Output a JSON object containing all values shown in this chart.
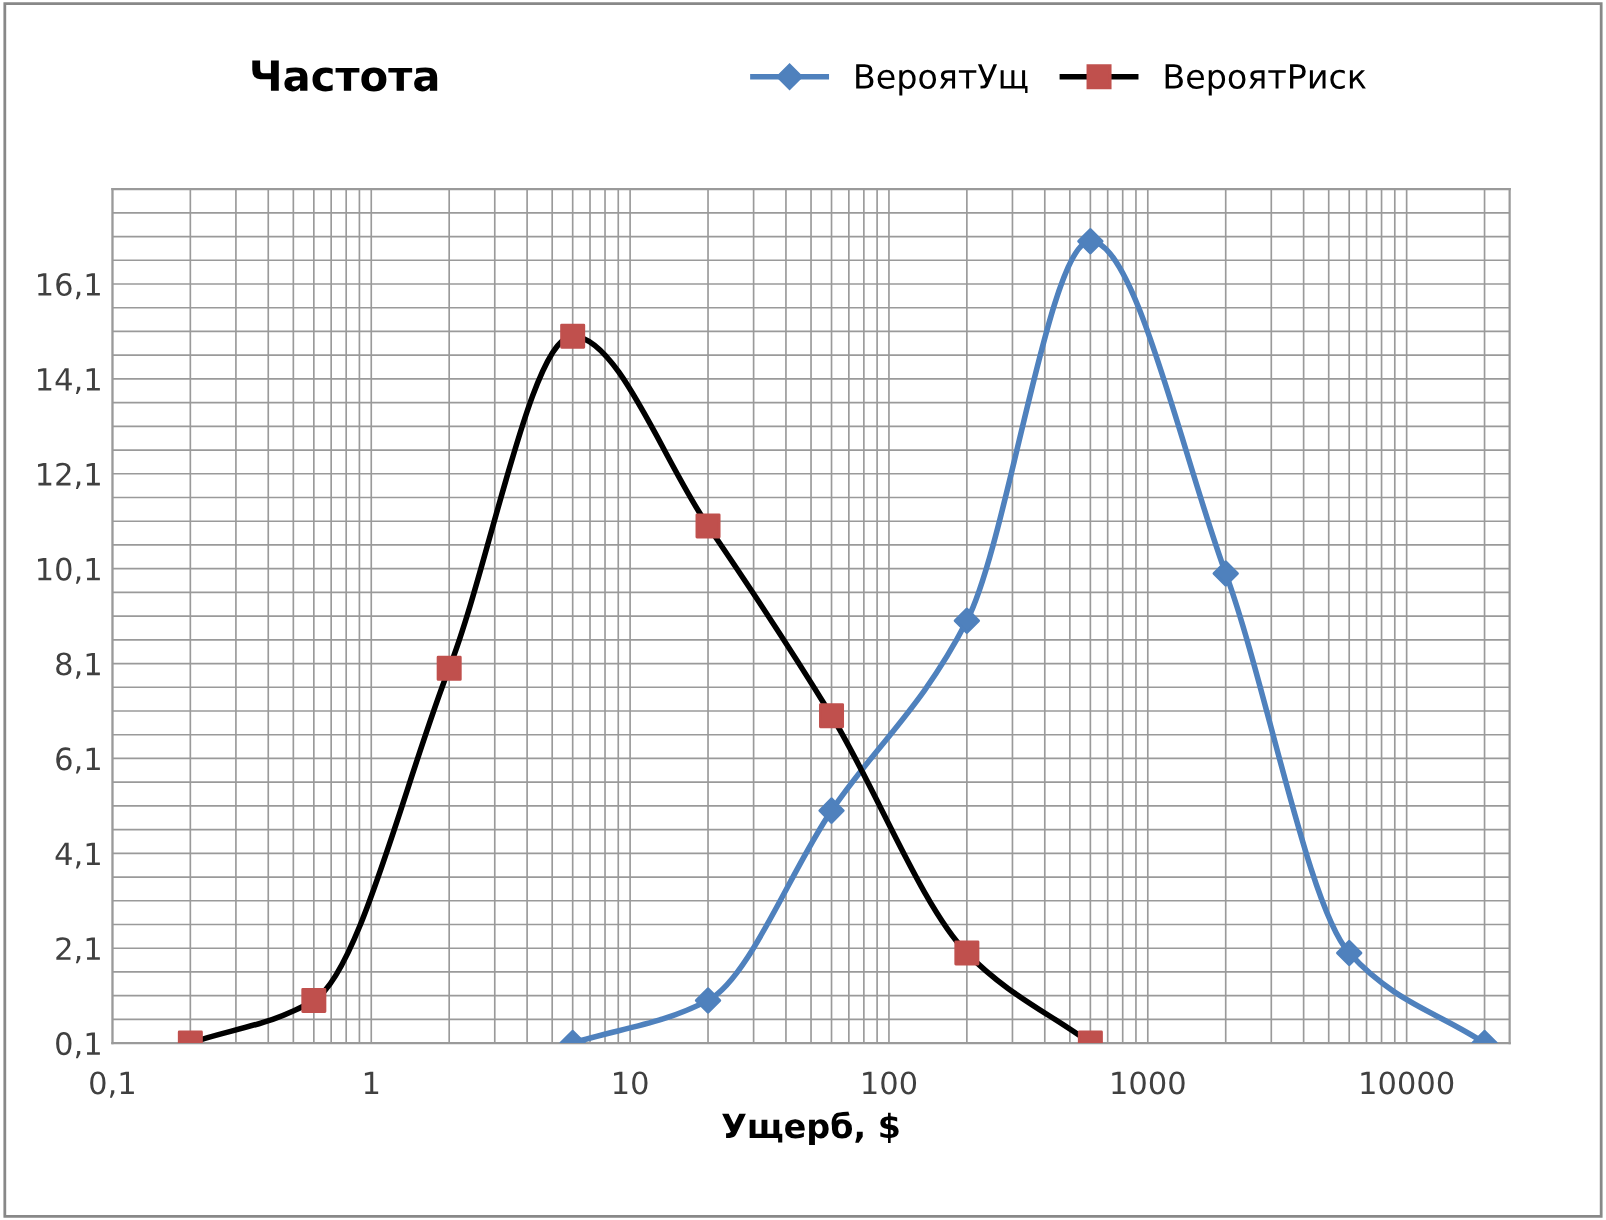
{
  "chart_data": {
    "type": "line",
    "title": "Частота",
    "xlabel": "Ущерб, $",
    "log": "x",
    "xlim": [
      0.1,
      25000
    ],
    "xticks": [
      {
        "value": 0.1,
        "label": "0,1"
      },
      1,
      10,
      100,
      1000,
      10000
    ],
    "ylim": [
      0.1,
      18.1
    ],
    "yticks": [
      {
        "value": 0.1,
        "label": "0,1"
      },
      {
        "value": 2.1,
        "label": "2,1"
      },
      {
        "value": 4.1,
        "label": "4,1"
      },
      {
        "value": 6.1,
        "label": "6,1"
      },
      {
        "value": 8.1,
        "label": "8,1"
      },
      {
        "value": 10.1,
        "label": "10,1"
      },
      {
        "value": 12.1,
        "label": "12,1"
      },
      {
        "value": 14.1,
        "label": "14,1"
      },
      {
        "value": 16.1,
        "label": "16,1"
      }
    ],
    "grid": true,
    "legend": "top",
    "series": [
      {
        "name": "ВероятУщ",
        "color": "#4f81bd",
        "marker": "diamond",
        "x": [
          6,
          20,
          60,
          200,
          600,
          2000,
          6000,
          20000
        ],
        "values": [
          0.1,
          1.0,
          5.0,
          9.0,
          17.0,
          10.0,
          2.0,
          0.1
        ]
      },
      {
        "name": "ВероятРиск",
        "color": "#000000",
        "colors": [
          "#c0504d",
          "#c0504d",
          "#c0504d",
          "#c0504d",
          "#c0504d",
          "#c0504d",
          "#c0504d",
          "#c0504d"
        ],
        "marker": "square",
        "x": [
          0.2,
          0.6,
          2,
          6,
          20,
          60,
          200,
          600
        ],
        "values": [
          0.1,
          1.0,
          8.0,
          15.0,
          11.0,
          7.0,
          2.0,
          0.1
        ]
      }
    ]
  }
}
